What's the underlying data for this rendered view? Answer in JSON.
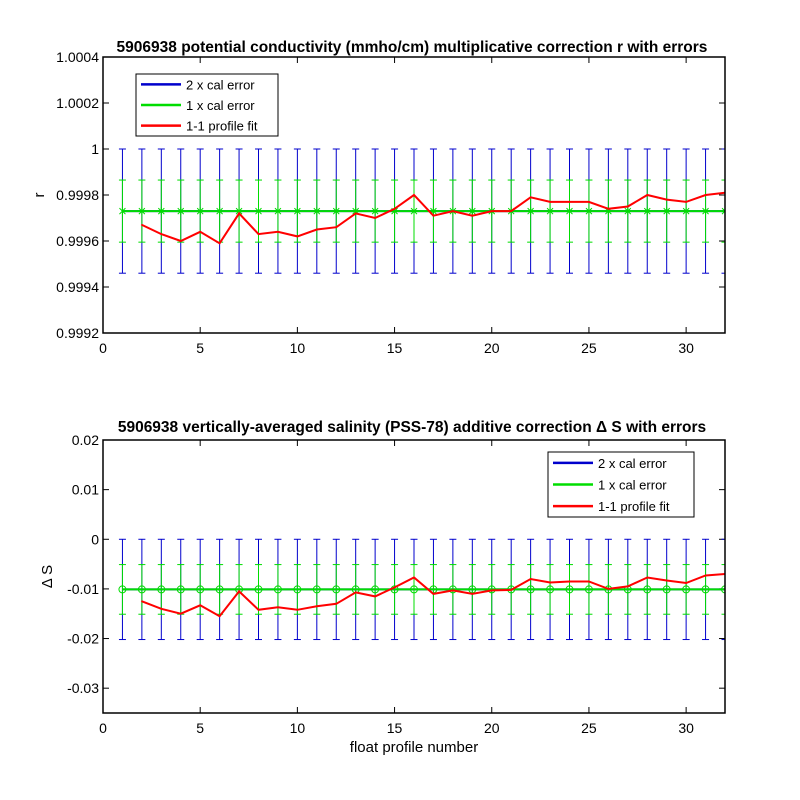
{
  "chart_data": [
    {
      "type": "line",
      "title": "5906938 potential conductivity (mmho/cm) multiplicative correction r with errors",
      "xlabel": "",
      "ylabel": "r",
      "xlim": [
        0,
        32
      ],
      "ylim": [
        0.9992,
        1.0004
      ],
      "xticks": [
        "0",
        "5",
        "10",
        "15",
        "20",
        "25",
        "30"
      ],
      "yticks": [
        "0.9992",
        "0.9994",
        "0.9996",
        "0.9998",
        "1",
        "1.0002",
        "1.0004"
      ],
      "legend_position": "top-left",
      "grid": false,
      "x": [
        1,
        2,
        3,
        4,
        5,
        6,
        7,
        8,
        9,
        10,
        11,
        12,
        13,
        14,
        15,
        16,
        17,
        18,
        19,
        20,
        21,
        22,
        23,
        24,
        25,
        26,
        27,
        28,
        29,
        30,
        31,
        32
      ],
      "series": [
        {
          "name": "2 x cal error",
          "color": "#0000cc",
          "center": 0.99973,
          "error": 0.00027
        },
        {
          "name": "1 x cal error",
          "color": "#00dd00",
          "center": 0.99973,
          "error": 0.000135
        },
        {
          "name": "1-1 profile fit",
          "color": "#ff0000",
          "x": [
            2,
            3,
            4,
            5,
            6,
            7,
            8,
            9,
            10,
            11,
            12,
            13,
            14,
            15,
            16,
            17,
            18,
            19,
            20,
            21,
            22,
            23,
            24,
            25,
            26,
            27,
            28,
            29,
            30,
            31,
            32
          ],
          "values": [
            0.99967,
            0.99963,
            0.9996,
            0.99964,
            0.99959,
            0.99972,
            0.99963,
            0.99964,
            0.99962,
            0.99965,
            0.99966,
            0.99972,
            0.9997,
            0.99974,
            0.9998,
            0.99971,
            0.99973,
            0.99971,
            0.99973,
            0.99973,
            0.99979,
            0.99977,
            0.99977,
            0.99977,
            0.99974,
            0.99975,
            0.9998,
            0.99978,
            0.99977,
            0.9998,
            0.99981
          ]
        }
      ]
    },
    {
      "type": "line",
      "title": "5906938 vertically-averaged salinity (PSS-78) additive correction Δ S with errors",
      "xlabel": "float profile number",
      "ylabel": "Δ S",
      "xlim": [
        0,
        32
      ],
      "ylim": [
        -0.035,
        0.02
      ],
      "xticks": [
        "0",
        "5",
        "10",
        "15",
        "20",
        "25",
        "30"
      ],
      "yticks": [
        "-0.03",
        "-0.02",
        "-0.01",
        "0",
        "0.01",
        "0.02"
      ],
      "legend_position": "top-right",
      "grid": false,
      "x": [
        1,
        2,
        3,
        4,
        5,
        6,
        7,
        8,
        9,
        10,
        11,
        12,
        13,
        14,
        15,
        16,
        17,
        18,
        19,
        20,
        21,
        22,
        23,
        24,
        25,
        26,
        27,
        28,
        29,
        30,
        31,
        32
      ],
      "series": [
        {
          "name": "2 x cal error",
          "color": "#0000cc",
          "center": -0.0101,
          "error": 0.0101
        },
        {
          "name": "1 x cal error",
          "color": "#00dd00",
          "center": -0.0101,
          "error": 0.005
        },
        {
          "name": "1-1 profile fit",
          "color": "#ff0000",
          "x": [
            2,
            3,
            4,
            5,
            6,
            7,
            8,
            9,
            10,
            11,
            12,
            13,
            14,
            15,
            16,
            17,
            18,
            19,
            20,
            21,
            22,
            23,
            24,
            25,
            26,
            27,
            28,
            29,
            30,
            31,
            32
          ],
          "values": [
            -0.0125,
            -0.014,
            -0.015,
            -0.0133,
            -0.0155,
            -0.0105,
            -0.0142,
            -0.0137,
            -0.0142,
            -0.0135,
            -0.013,
            -0.0107,
            -0.0115,
            -0.0097,
            -0.0077,
            -0.011,
            -0.0103,
            -0.011,
            -0.0103,
            -0.0102,
            -0.008,
            -0.0087,
            -0.0085,
            -0.0085,
            -0.01,
            -0.0095,
            -0.0077,
            -0.0083,
            -0.0088,
            -0.0073,
            -0.007
          ]
        }
      ]
    }
  ]
}
